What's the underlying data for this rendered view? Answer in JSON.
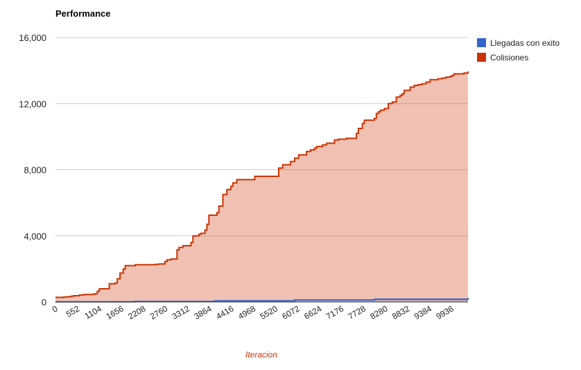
{
  "chart_data": {
    "type": "area",
    "title": "Performance",
    "xlabel": "Iteracion",
    "ylabel": "",
    "ylim": [
      0,
      16000
    ],
    "yticks": [
      0,
      4000,
      8000,
      12000,
      16000
    ],
    "ytick_labels": [
      "0",
      "4,000",
      "8,000",
      "12,000",
      "16,000"
    ],
    "xlim": [
      0,
      10350
    ],
    "xticks": [
      0,
      552,
      1104,
      1656,
      2208,
      2760,
      3312,
      3864,
      4416,
      4968,
      5520,
      6072,
      6624,
      7176,
      7728,
      8280,
      8832,
      9384,
      9936
    ],
    "xtick_labels": [
      "0",
      "552",
      "1104",
      "1656",
      "2208",
      "2760",
      "3312",
      "3864",
      "4416",
      "4968",
      "5520",
      "6072",
      "6624",
      "7176",
      "7728",
      "8280",
      "8832",
      "9384",
      "9936"
    ],
    "grid": true,
    "legend_position": "right",
    "series": [
      {
        "name": "Llegadas con exito",
        "color": "#3366cc",
        "x": [
          0,
          2000,
          4000,
          6000,
          8000,
          10350
        ],
        "values": [
          10,
          30,
          70,
          120,
          170,
          250
        ]
      },
      {
        "name": "Colisiones",
        "color": "#cc3300",
        "x": [
          0,
          200,
          300,
          400,
          450,
          600,
          700,
          950,
          1000,
          1050,
          1100,
          1350,
          1500,
          1550,
          1620,
          1700,
          1750,
          2000,
          2500,
          2600,
          2750,
          2800,
          2900,
          3050,
          3100,
          3200,
          3400,
          3450,
          3600,
          3650,
          3750,
          3800,
          3850,
          4050,
          4100,
          4200,
          4300,
          4400,
          4450,
          4550,
          5000,
          5100,
          5150,
          5250,
          5600,
          5700,
          5900,
          6000,
          6100,
          6300,
          6400,
          6500,
          6550,
          6700,
          6800,
          7000,
          7100,
          7300,
          7500,
          7550,
          7600,
          7700,
          7750,
          8000,
          8050,
          8100,
          8150,
          8250,
          8350,
          8450,
          8550,
          8650,
          8700,
          8750,
          8900,
          9000,
          9100,
          9200,
          9300,
          9400,
          9600,
          9700,
          9800,
          9900,
          9950,
          10000,
          10250,
          10350
        ],
        "values": [
          280,
          300,
          320,
          350,
          380,
          420,
          450,
          480,
          500,
          650,
          800,
          1100,
          1150,
          1400,
          1750,
          2000,
          2200,
          2250,
          2280,
          2300,
          2450,
          2550,
          2600,
          3150,
          3300,
          3400,
          3600,
          4000,
          4100,
          4150,
          4350,
          4700,
          5250,
          5400,
          5800,
          6500,
          6800,
          7000,
          7200,
          7400,
          7600,
          7600,
          7600,
          7600,
          8100,
          8300,
          8500,
          8700,
          8900,
          9100,
          9200,
          9300,
          9400,
          9500,
          9600,
          9800,
          9850,
          9900,
          9900,
          10200,
          10500,
          10800,
          11000,
          11100,
          11400,
          11500,
          11600,
          11700,
          12000,
          12100,
          12400,
          12500,
          12600,
          12800,
          13000,
          13100,
          13150,
          13200,
          13300,
          13450,
          13500,
          13550,
          13600,
          13650,
          13700,
          13800,
          13850,
          13950
        ]
      }
    ]
  }
}
